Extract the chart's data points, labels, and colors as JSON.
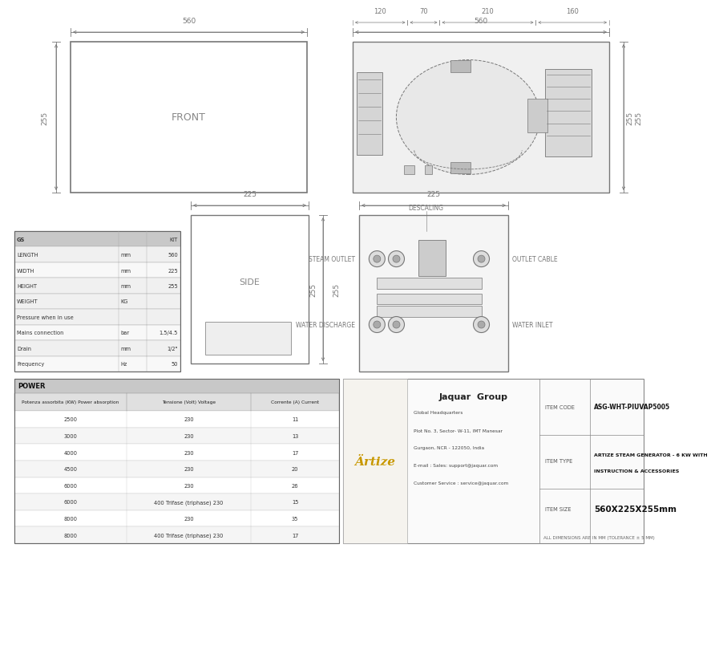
{
  "bg_color": "#ffffff",
  "line_color": "#777777",
  "thin_line": "#888888",
  "info_table": {
    "rows": [
      [
        "GS",
        "",
        "KIT"
      ],
      [
        "LENGTH",
        "mm",
        "560"
      ],
      [
        "WIDTH",
        "mm",
        "225"
      ],
      [
        "HEIGHT",
        "mm",
        "255"
      ],
      [
        "WEIGHT",
        "KG",
        ""
      ],
      [
        "Pressure when in use",
        "",
        ""
      ],
      [
        "Mains connection",
        "bar",
        "1.5/4.5"
      ],
      [
        "Drain",
        "mm",
        "1/2\""
      ],
      [
        "Frequency",
        "Hz",
        "50"
      ]
    ]
  },
  "power_table": {
    "header": "POWER",
    "col_headers": [
      "Potenza assorbita (KW) Power absorption",
      "Tensione (Volt) Voltage",
      "Corrente (A) Current"
    ],
    "rows": [
      [
        "2500",
        "230",
        "11"
      ],
      [
        "3000",
        "230",
        "13"
      ],
      [
        "4000",
        "230",
        "17"
      ],
      [
        "4500",
        "230",
        "20"
      ],
      [
        "6000",
        "230",
        "26"
      ],
      [
        "6000",
        "400 Trifase (triphase) 230",
        "15"
      ],
      [
        "8000",
        "230",
        "35"
      ],
      [
        "8000",
        "400 Trifase (triphase) 230",
        "17"
      ]
    ]
  },
  "item_code": "ASG-WHT-PIUVAP5005",
  "item_type_line1": "ARTIZE STEAM GENERATOR - 6 KW WITH",
  "item_type_line2": "INSTRUCTION & ACCESSORIES",
  "item_size": "560X225X255mm",
  "note": "ALL DIMENSIONS ARE IN MM (TOLERANCE ± 5 MM)"
}
